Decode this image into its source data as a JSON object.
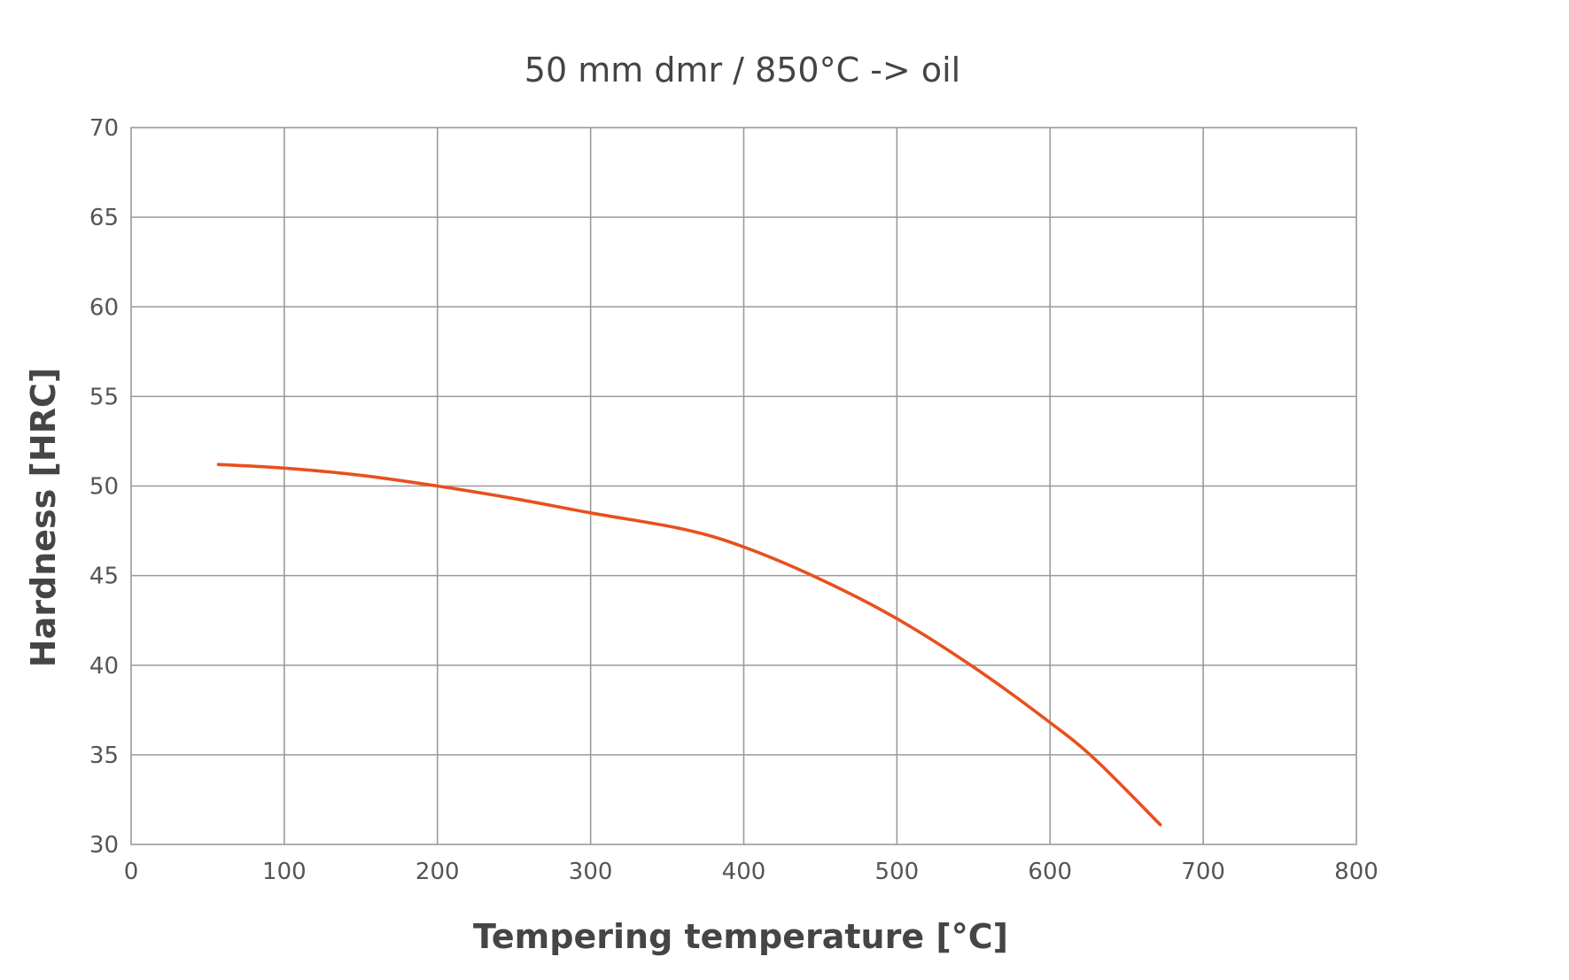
{
  "chart_data": {
    "type": "line",
    "title": "50 mm dmr / 850°C -> oil",
    "xlabel": "Tempering temperature [°C]",
    "ylabel": "Hardness [HRC]",
    "xlim": [
      0,
      800
    ],
    "ylim": [
      30,
      70
    ],
    "xticks": [
      0,
      100,
      200,
      300,
      400,
      500,
      600,
      700,
      800
    ],
    "yticks": [
      30,
      35,
      40,
      45,
      50,
      55,
      60,
      65,
      70
    ],
    "grid": true,
    "legend": "none",
    "series": [
      {
        "color": "#e8501e",
        "x": [
          57,
          100,
          150,
          200,
          250,
          300,
          360,
          400,
          450,
          500,
          550,
          600,
          630,
          672
        ],
        "y": [
          51.2,
          51.0,
          50.6,
          50.0,
          49.3,
          48.5,
          47.6,
          46.6,
          44.8,
          42.6,
          39.9,
          36.8,
          34.7,
          31.1
        ]
      }
    ]
  }
}
